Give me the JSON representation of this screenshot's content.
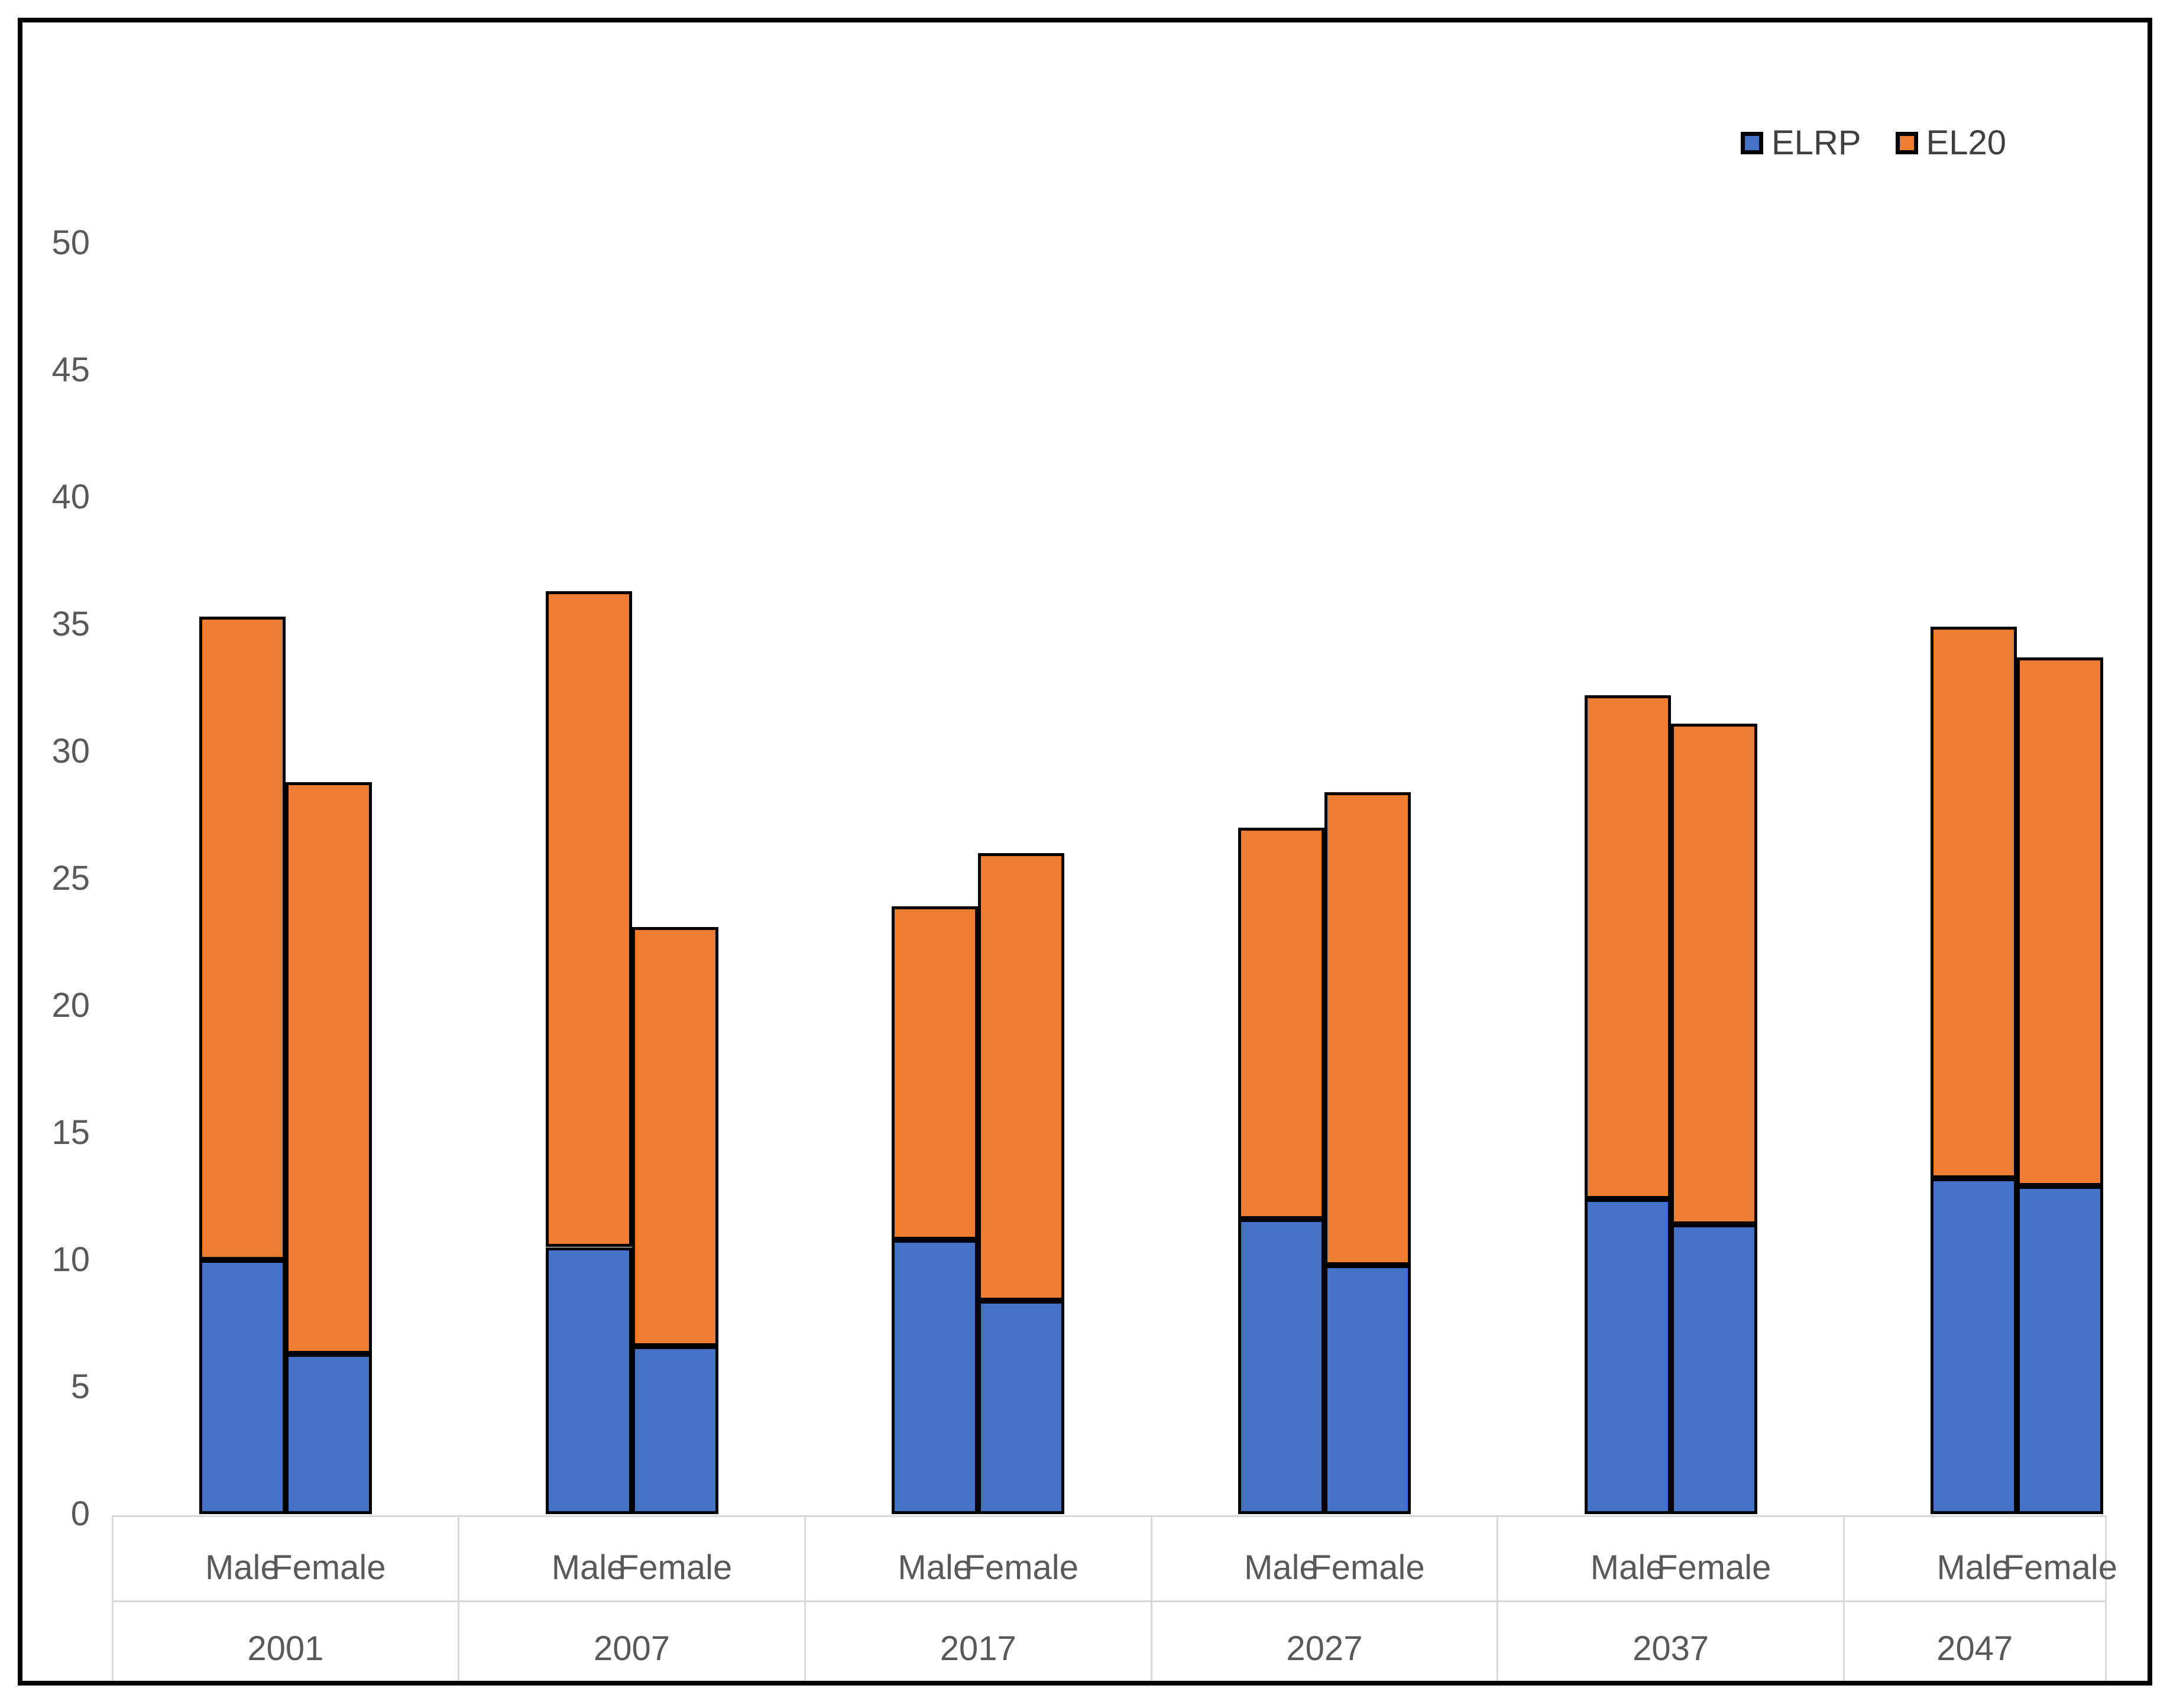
{
  "chart_data": {
    "type": "bar",
    "stacked": true,
    "title": "",
    "grid": false,
    "legend_position": "top-right",
    "legend": [
      "ELRP",
      "EL20"
    ],
    "years": [
      "2001",
      "2007",
      "2017",
      "2027",
      "2037",
      "2047"
    ],
    "sub_categories": [
      "Male",
      "Female"
    ],
    "series": [
      {
        "name": "ELRP",
        "color": "#4472C4",
        "values": [
          [
            10.0,
            6.3
          ],
          [
            10.5,
            6.6
          ],
          [
            10.8,
            8.4
          ],
          [
            11.6,
            9.8
          ],
          [
            12.4,
            11.4
          ],
          [
            13.2,
            12.9
          ]
        ]
      },
      {
        "name": "EL20",
        "color": "#ED7D31",
        "values": [
          [
            25.3,
            22.5
          ],
          [
            25.8,
            16.5
          ],
          [
            13.1,
            17.6
          ],
          [
            15.4,
            18.6
          ],
          [
            19.8,
            19.7
          ],
          [
            21.7,
            20.8
          ]
        ]
      }
    ],
    "y_axis": {
      "min": 0,
      "max": 50,
      "tick_step": 5,
      "ticks": [
        0,
        5,
        10,
        15,
        20,
        25,
        30,
        35,
        40,
        45,
        50
      ]
    },
    "colors": {
      "elrp": "#4472C4",
      "el20": "#ED7D31",
      "bar_border": "#000000",
      "axis_text": "#595959",
      "band_lines": "#D9D9D9",
      "chart_border": "#000000",
      "background": "#FFFFFF"
    }
  }
}
